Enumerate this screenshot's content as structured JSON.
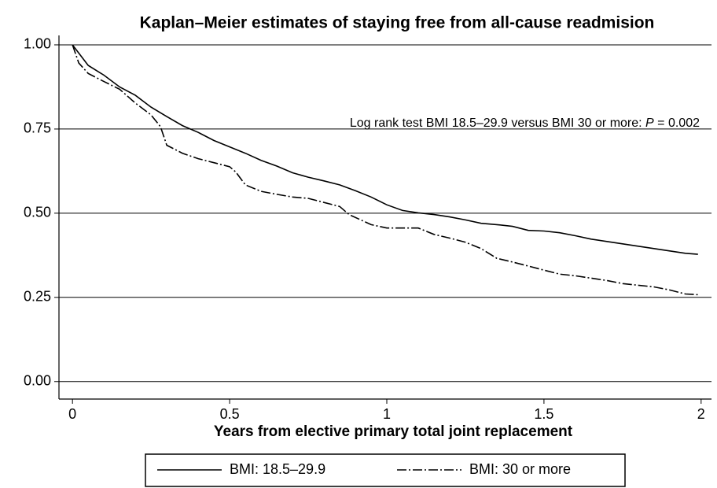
{
  "chart_data": {
    "type": "line",
    "title": "Kaplan–Meier estimates of staying free from all-cause readmision",
    "x_label": "Years from elective primary total joint replacement",
    "annotation": {
      "text": "Log rank test BMI 18.5–29.9 versus BMI 30 or more:",
      "p_label": "P",
      "p_value": "= 0.002"
    },
    "xlim": [
      -0.043,
      2.033
    ],
    "ylim": [
      -0.052,
      1.028
    ],
    "xticks": [
      0,
      0.5,
      1,
      1.5,
      2
    ],
    "yticks": [
      {
        "value": 0,
        "label": "0.00"
      },
      {
        "value": 0.25,
        "label": "0.25"
      },
      {
        "value": 0.5,
        "label": "0.50"
      },
      {
        "value": 0.75,
        "label": "0.75"
      },
      {
        "value": 1,
        "label": "1.00"
      }
    ],
    "grid": true,
    "legend": "bottom",
    "series": [
      {
        "name": "BMI: 18.5–29.9",
        "color": "#000000",
        "line_style": "solid",
        "x": [
          0,
          0.05,
          0.1,
          0.15,
          0.2,
          0.25,
          0.3,
          0.35,
          0.4,
          0.45,
          0.5,
          0.55,
          0.6,
          0.65,
          0.7,
          0.75,
          0.8,
          0.85,
          0.9,
          0.95,
          1.0,
          1.05,
          1.1,
          1.15,
          1.2,
          1.25,
          1.3,
          1.35,
          1.4,
          1.45,
          1.5,
          1.55,
          1.6,
          1.65,
          1.7,
          1.75,
          1.8,
          1.85,
          1.9,
          1.95,
          1.99
        ],
        "values": [
          1.0,
          0.939,
          0.91,
          0.875,
          0.85,
          0.815,
          0.787,
          0.76,
          0.74,
          0.716,
          0.697,
          0.678,
          0.657,
          0.64,
          0.62,
          0.607,
          0.596,
          0.584,
          0.567,
          0.548,
          0.525,
          0.508,
          0.501,
          0.496,
          0.489,
          0.48,
          0.47,
          0.466,
          0.461,
          0.449,
          0.447,
          0.442,
          0.433,
          0.423,
          0.416,
          0.409,
          0.402,
          0.395,
          0.388,
          0.381,
          0.378
        ]
      },
      {
        "name": "BMI: 30 or more",
        "color": "#000000",
        "line_style": "dashdot",
        "x": [
          0,
          0.02,
          0.05,
          0.1,
          0.15,
          0.2,
          0.25,
          0.28,
          0.3,
          0.35,
          0.4,
          0.45,
          0.5,
          0.52,
          0.55,
          0.6,
          0.65,
          0.7,
          0.75,
          0.8,
          0.85,
          0.88,
          0.95,
          1.0,
          1.1,
          1.15,
          1.2,
          1.25,
          1.3,
          1.35,
          1.4,
          1.45,
          1.5,
          1.55,
          1.6,
          1.65,
          1.7,
          1.75,
          1.8,
          1.85,
          1.9,
          1.95,
          1.99
        ],
        "values": [
          1.0,
          0.946,
          0.915,
          0.891,
          0.868,
          0.827,
          0.792,
          0.757,
          0.702,
          0.678,
          0.662,
          0.65,
          0.638,
          0.622,
          0.584,
          0.565,
          0.556,
          0.548,
          0.544,
          0.532,
          0.52,
          0.496,
          0.466,
          0.456,
          0.456,
          0.437,
          0.426,
          0.414,
          0.395,
          0.366,
          0.355,
          0.343,
          0.331,
          0.319,
          0.314,
          0.307,
          0.3,
          0.291,
          0.286,
          0.281,
          0.272,
          0.26,
          0.258
        ]
      }
    ]
  }
}
